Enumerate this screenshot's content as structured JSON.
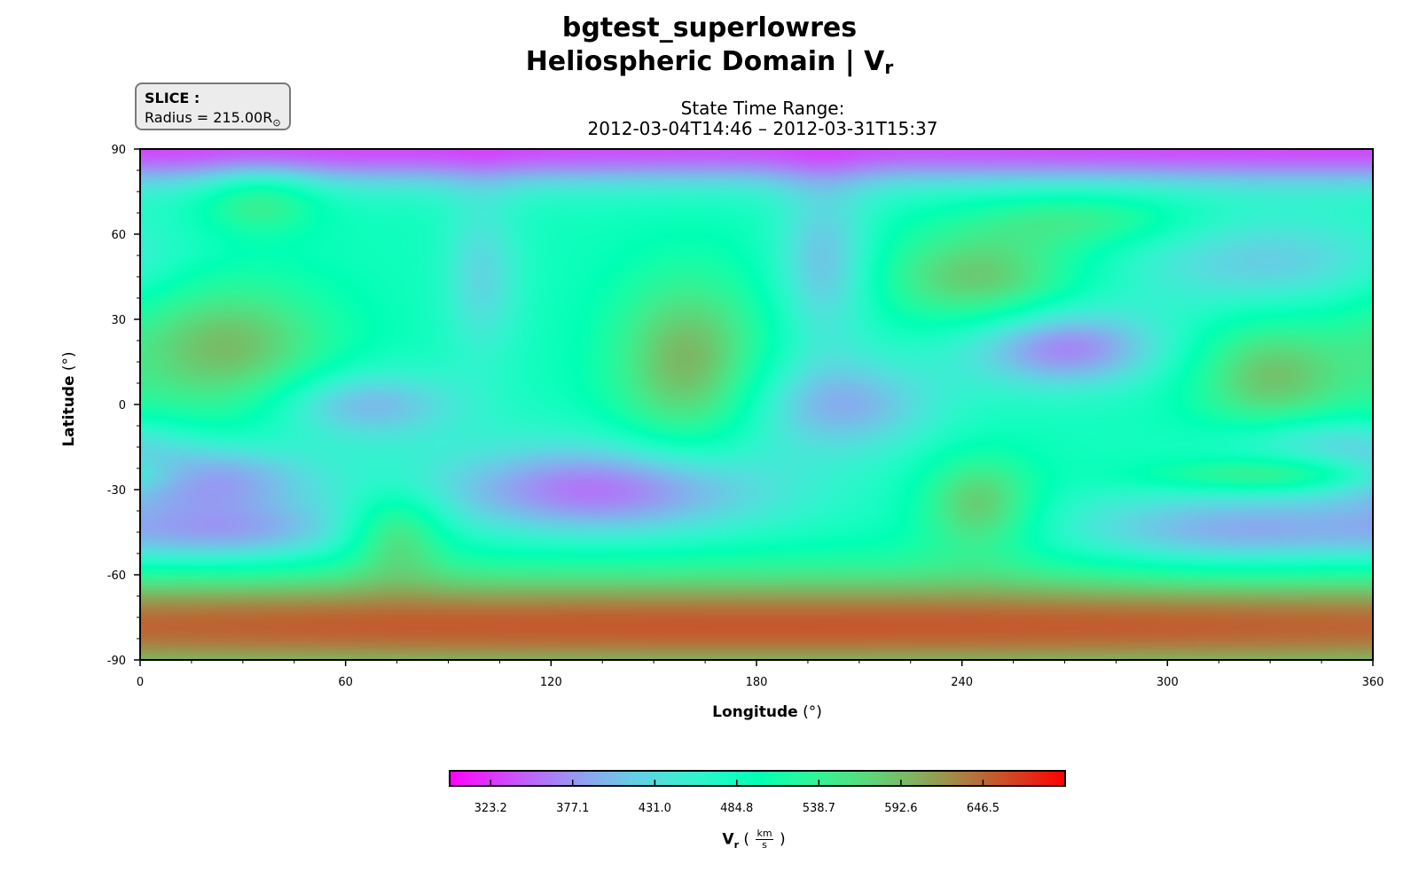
{
  "chart_data": {
    "type": "heatmap",
    "title": "bgtest_superlowres",
    "title2_prefix": "Heliospheric Domain | V",
    "title2_sub": "r",
    "subtitle_line1": "State Time Range:",
    "subtitle_line2": "2012-03-04T14:46 – 2012-03-31T15:37",
    "slice_label": "SLICE :",
    "slice_value": "Radius = 215.00R",
    "slice_sub": "⊙",
    "xlabel_bold": "Longitude",
    "xlabel_unit": " (°)",
    "ylabel_bold": "Latitude",
    "ylabel_unit": " (°)",
    "xlim": [
      0,
      360
    ],
    "ylim": [
      -90,
      90
    ],
    "xticks": [
      "0",
      "60",
      "120",
      "180",
      "240",
      "300",
      "360"
    ],
    "yticks": [
      "90",
      "60",
      "30",
      "0",
      "-30",
      "-60",
      "-90"
    ],
    "colorbar": {
      "vmin": 296.3,
      "vmax": 700.4,
      "ticks": [
        "323.2",
        "377.1",
        "431.0",
        "484.8",
        "538.7",
        "592.6",
        "646.5"
      ],
      "label_main": "V",
      "label_sub": "r",
      "label_unit_open": " ( ",
      "label_unit_num": "km",
      "label_unit_den": "s",
      "label_unit_close": " )",
      "colormap": "rainbow"
    },
    "field": {
      "base": 485,
      "features": [
        {
          "lon": 30,
          "lat": 90,
          "slon": 500,
          "slat": 9,
          "amp": -150
        },
        {
          "lon": 25,
          "lat": 20,
          "slon": 22,
          "slat": 18,
          "amp": 110
        },
        {
          "lon": 160,
          "lat": 15,
          "slon": 16,
          "slat": 22,
          "amp": 115
        },
        {
          "lon": 245,
          "lat": 45,
          "slon": 20,
          "slat": 12,
          "amp": 100
        },
        {
          "lon": 330,
          "lat": 10,
          "slon": 16,
          "slat": 14,
          "amp": 100
        },
        {
          "lon": 330,
          "lat": -25,
          "slon": 25,
          "slat": 4,
          "amp": 70
        },
        {
          "lon": 75,
          "lat": -45,
          "slon": 10,
          "slat": 10,
          "amp": 90
        },
        {
          "lon": 245,
          "lat": -35,
          "slon": 12,
          "slat": 12,
          "amp": 100
        },
        {
          "lon": 180,
          "lat": -78,
          "slon": 600,
          "slat": 14,
          "amp": 170
        },
        {
          "lon": 35,
          "lat": 72,
          "slon": 12,
          "slat": 8,
          "amp": 70
        },
        {
          "lon": 275,
          "lat": 65,
          "slon": 22,
          "slat": 7,
          "amp": 60
        },
        {
          "lon": 200,
          "lat": 50,
          "slon": 10,
          "slat": 20,
          "amp": -80
        },
        {
          "lon": 65,
          "lat": 0,
          "slon": 20,
          "slat": 9,
          "amp": -90
        },
        {
          "lon": 20,
          "lat": -25,
          "slon": 22,
          "slat": 8,
          "amp": -100
        },
        {
          "lon": 30,
          "lat": -45,
          "slon": 26,
          "slat": 9,
          "amp": -90
        },
        {
          "lon": 135,
          "lat": -30,
          "slon": 36,
          "slat": 12,
          "amp": -130
        },
        {
          "lon": 205,
          "lat": 0,
          "slon": 20,
          "slat": 12,
          "amp": -90
        },
        {
          "lon": 270,
          "lat": 20,
          "slon": 20,
          "slat": 10,
          "amp": -120
        },
        {
          "lon": 320,
          "lat": -45,
          "slon": 36,
          "slat": 10,
          "amp": -100
        },
        {
          "lon": 345,
          "lat": -12,
          "slon": 20,
          "slat": 6,
          "amp": -60
        },
        {
          "lon": 330,
          "lat": 50,
          "slon": 30,
          "slat": 12,
          "amp": -70
        },
        {
          "lon": 100,
          "lat": 45,
          "slon": 8,
          "slat": 20,
          "amp": -60
        }
      ]
    }
  }
}
